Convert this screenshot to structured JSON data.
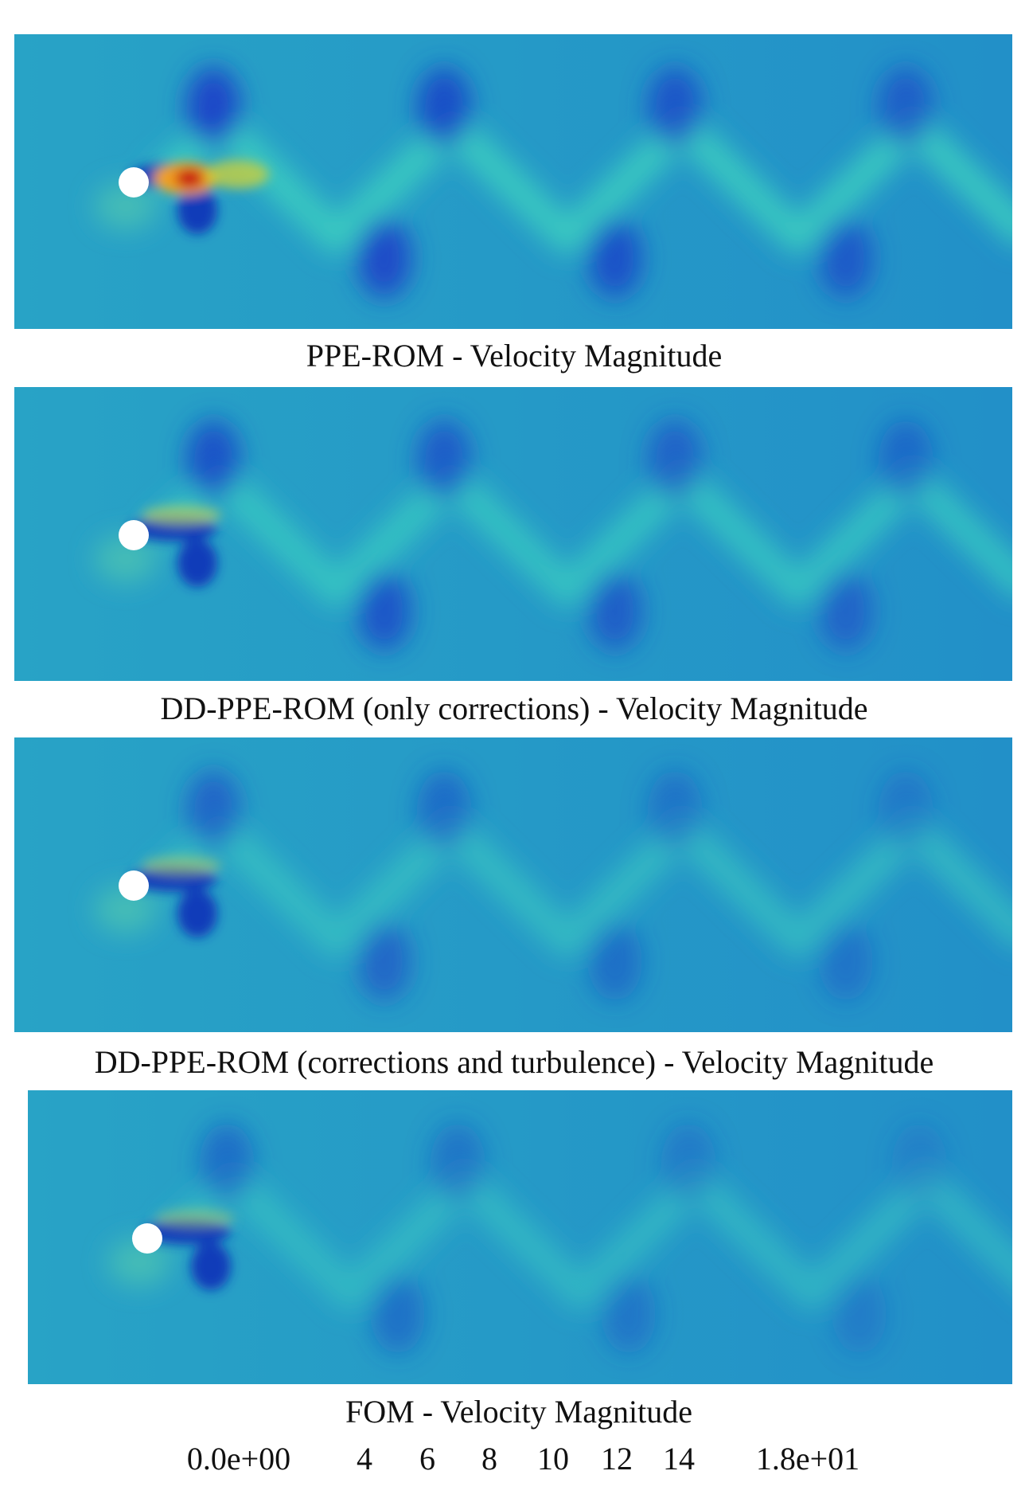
{
  "panels": [
    {
      "caption": "PPE-ROM -  Velocity Magnitude"
    },
    {
      "caption": "DD-PPE-ROM (only corrections) -  Velocity Magnitude"
    },
    {
      "caption": "DD-PPE-ROM (corrections and turbulence) -  Velocity Magnitude"
    },
    {
      "caption": "FOM -  Velocity Magnitude"
    }
  ],
  "colorbar": {
    "labels": [
      "0.0e+00",
      "4",
      "6",
      "8",
      "10",
      "12",
      "14",
      "1.8e+01"
    ]
  }
}
